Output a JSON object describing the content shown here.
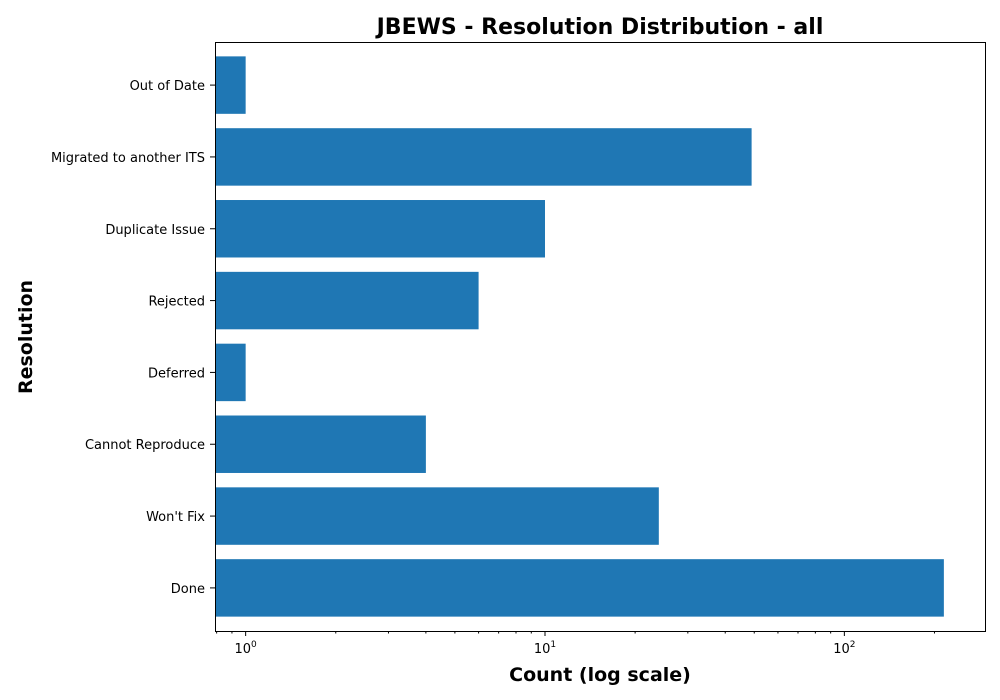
{
  "chart_data": {
    "type": "bar",
    "orientation": "horizontal",
    "title": "JBEWS - Resolution Distribution - all",
    "xlabel": "Count (log scale)",
    "ylabel": "Resolution",
    "xscale": "log",
    "xlim": [
      0.79,
      295
    ],
    "x_ticks": [
      {
        "value": 1,
        "base": "10",
        "exp": "0"
      },
      {
        "value": 10,
        "base": "10",
        "exp": "1"
      },
      {
        "value": 100,
        "base": "10",
        "exp": "2"
      }
    ],
    "grid": false,
    "bar_color": "#1f77b4",
    "categories": [
      "Done",
      "Won't Fix",
      "Cannot Reproduce",
      "Deferred",
      "Rejected",
      "Duplicate Issue",
      "Migrated to another ITS",
      "Out of Date"
    ],
    "values": [
      215,
      24,
      4,
      1,
      6,
      10,
      49,
      1
    ]
  }
}
